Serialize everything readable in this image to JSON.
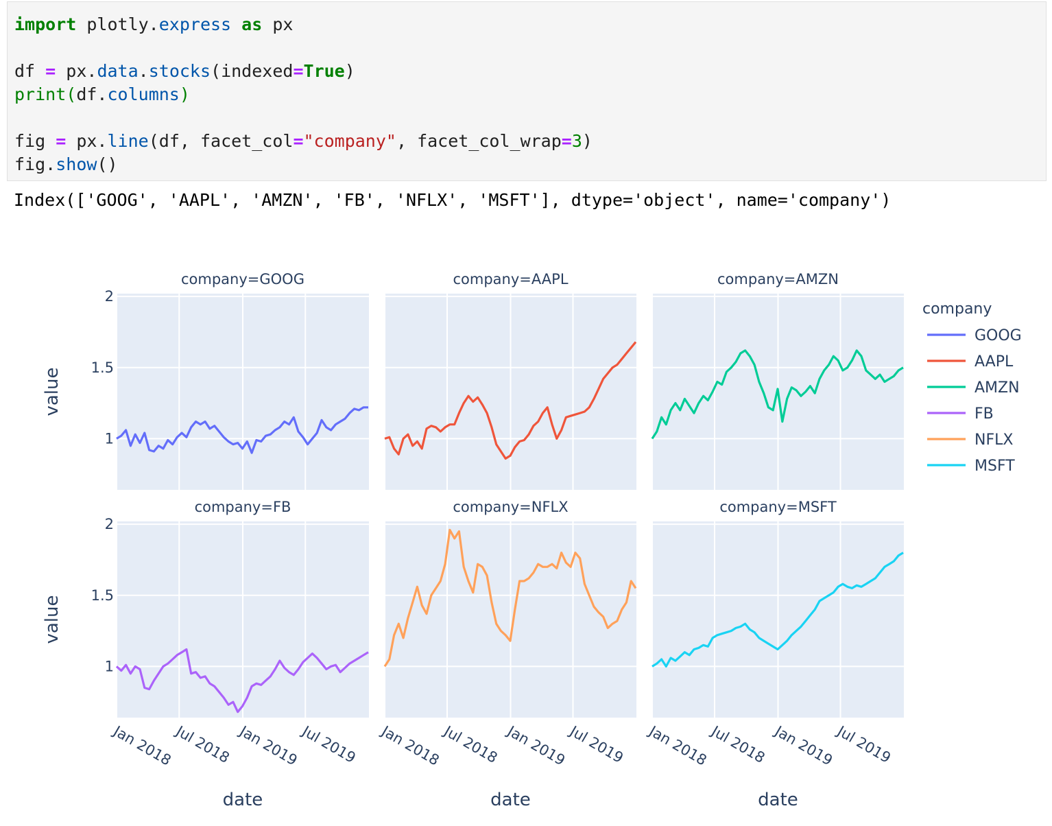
{
  "code": {
    "lines": [
      [
        {
          "t": "import",
          "c": "kw"
        },
        {
          "t": " plotly."
        },
        {
          "t": "express",
          "c": "attr"
        },
        {
          "t": " "
        },
        {
          "t": "as",
          "c": "kw"
        },
        {
          "t": " px"
        }
      ],
      [],
      [
        {
          "t": "df "
        },
        {
          "t": "=",
          "c": "op"
        },
        {
          "t": " px."
        },
        {
          "t": "data",
          "c": "attr"
        },
        {
          "t": "."
        },
        {
          "t": "stocks",
          "c": "attr"
        },
        {
          "t": "(indexed"
        },
        {
          "t": "=",
          "c": "op"
        },
        {
          "t": "True",
          "c": "kw"
        },
        {
          "t": ")"
        }
      ],
      [
        {
          "t": "print",
          "c": "fn"
        },
        {
          "t": "(",
          "c": "fn"
        },
        {
          "t": "df."
        },
        {
          "t": "columns",
          "c": "attr"
        },
        {
          "t": ")",
          "c": "fn"
        }
      ],
      [],
      [
        {
          "t": "fig "
        },
        {
          "t": "=",
          "c": "op"
        },
        {
          "t": " px."
        },
        {
          "t": "line",
          "c": "attr"
        },
        {
          "t": "(df, facet_col"
        },
        {
          "t": "=",
          "c": "op"
        },
        {
          "t": "\"company\"",
          "c": "str"
        },
        {
          "t": ", facet_col_wrap"
        },
        {
          "t": "=",
          "c": "op"
        },
        {
          "t": "3",
          "c": "num"
        },
        {
          "t": ")"
        }
      ],
      [
        {
          "t": "fig."
        },
        {
          "t": "show",
          "c": "attr"
        },
        {
          "t": "()"
        }
      ]
    ]
  },
  "output_text": "Index(['GOOG', 'AAPL', 'AMZN', 'FB', 'NFLX', 'MSFT'], dtype='object', name='company')",
  "chart_data": {
    "type": "line",
    "xlabel": "date",
    "ylabel": "value",
    "x_ticks": [
      "Jan 2018",
      "Jul 2018",
      "Jan 2019",
      "Jul 2019"
    ],
    "x_tick_dates": [
      "2018-01-01",
      "2018-07-01",
      "2019-01-01",
      "2019-07-01"
    ],
    "x_range": [
      "2018-01-01",
      "2020-01-01"
    ],
    "y_ticks": [
      1,
      1.5,
      2
    ],
    "y_tick_labels": [
      "1",
      "1.5",
      "2"
    ],
    "y_range": [
      0.64,
      2.02
    ],
    "grid": true,
    "legend_title": "company",
    "legend_position": "right",
    "facet_prefix": "company=",
    "panel_background": "#e5ecf6",
    "series": [
      {
        "name": "GOOG",
        "color": "#636efa",
        "values": [
          1.0,
          1.02,
          1.06,
          0.95,
          1.03,
          0.97,
          1.04,
          0.92,
          0.91,
          0.95,
          0.93,
          0.99,
          0.96,
          1.01,
          1.04,
          1.01,
          1.08,
          1.12,
          1.1,
          1.12,
          1.07,
          1.09,
          1.05,
          1.01,
          0.98,
          0.96,
          0.97,
          0.93,
          0.98,
          0.9,
          0.99,
          0.98,
          1.02,
          1.03,
          1.06,
          1.08,
          1.12,
          1.1,
          1.15,
          1.05,
          1.01,
          0.96,
          1.0,
          1.04,
          1.13,
          1.08,
          1.06,
          1.1,
          1.12,
          1.14,
          1.18,
          1.21,
          1.2,
          1.22,
          1.22
        ]
      },
      {
        "name": "AAPL",
        "color": "#ef553b",
        "values": [
          1.0,
          1.01,
          0.93,
          0.89,
          1.0,
          1.03,
          0.95,
          0.98,
          0.93,
          1.07,
          1.09,
          1.08,
          1.05,
          1.08,
          1.1,
          1.1,
          1.18,
          1.25,
          1.3,
          1.26,
          1.29,
          1.24,
          1.18,
          1.08,
          0.96,
          0.91,
          0.86,
          0.88,
          0.94,
          0.98,
          0.99,
          1.03,
          1.09,
          1.12,
          1.18,
          1.22,
          1.1,
          1.0,
          1.06,
          1.15,
          1.16,
          1.17,
          1.18,
          1.19,
          1.22,
          1.28,
          1.35,
          1.42,
          1.46,
          1.5,
          1.52,
          1.56,
          1.6,
          1.64,
          1.68
        ]
      },
      {
        "name": "AMZN",
        "color": "#00cc96",
        "values": [
          1.0,
          1.05,
          1.15,
          1.1,
          1.2,
          1.25,
          1.2,
          1.28,
          1.23,
          1.18,
          1.25,
          1.3,
          1.27,
          1.33,
          1.4,
          1.38,
          1.47,
          1.5,
          1.54,
          1.6,
          1.62,
          1.58,
          1.52,
          1.4,
          1.32,
          1.22,
          1.2,
          1.35,
          1.12,
          1.28,
          1.36,
          1.34,
          1.3,
          1.33,
          1.37,
          1.32,
          1.42,
          1.48,
          1.52,
          1.58,
          1.55,
          1.48,
          1.5,
          1.55,
          1.62,
          1.58,
          1.48,
          1.45,
          1.42,
          1.45,
          1.4,
          1.42,
          1.44,
          1.48,
          1.5
        ]
      },
      {
        "name": "FB",
        "color": "#ab63fa",
        "values": [
          1.0,
          0.97,
          1.01,
          0.95,
          1.0,
          0.98,
          0.85,
          0.84,
          0.9,
          0.95,
          1.0,
          1.02,
          1.05,
          1.08,
          1.1,
          1.12,
          0.95,
          0.96,
          0.92,
          0.93,
          0.88,
          0.86,
          0.82,
          0.78,
          0.73,
          0.75,
          0.68,
          0.72,
          0.78,
          0.86,
          0.88,
          0.87,
          0.9,
          0.93,
          0.98,
          1.04,
          0.99,
          0.96,
          0.94,
          0.98,
          1.03,
          1.06,
          1.09,
          1.06,
          1.02,
          0.98,
          1.0,
          1.01,
          0.96,
          0.99,
          1.02,
          1.04,
          1.06,
          1.08,
          1.1
        ]
      },
      {
        "name": "NFLX",
        "color": "#ffa15a",
        "values": [
          1.0,
          1.05,
          1.22,
          1.3,
          1.2,
          1.34,
          1.45,
          1.56,
          1.43,
          1.37,
          1.5,
          1.55,
          1.6,
          1.72,
          1.96,
          1.9,
          1.95,
          1.7,
          1.6,
          1.52,
          1.72,
          1.7,
          1.64,
          1.45,
          1.3,
          1.25,
          1.22,
          1.18,
          1.4,
          1.6,
          1.6,
          1.62,
          1.66,
          1.72,
          1.7,
          1.7,
          1.72,
          1.69,
          1.8,
          1.73,
          1.7,
          1.8,
          1.76,
          1.58,
          1.5,
          1.42,
          1.38,
          1.35,
          1.27,
          1.3,
          1.32,
          1.4,
          1.45,
          1.6,
          1.55
        ]
      },
      {
        "name": "MSFT",
        "color": "#19d3f3",
        "values": [
          1.0,
          1.02,
          1.05,
          1.0,
          1.06,
          1.04,
          1.07,
          1.1,
          1.08,
          1.12,
          1.13,
          1.15,
          1.14,
          1.2,
          1.22,
          1.23,
          1.24,
          1.25,
          1.27,
          1.28,
          1.3,
          1.26,
          1.24,
          1.2,
          1.18,
          1.16,
          1.14,
          1.12,
          1.15,
          1.18,
          1.22,
          1.25,
          1.28,
          1.32,
          1.36,
          1.4,
          1.46,
          1.48,
          1.5,
          1.52,
          1.56,
          1.58,
          1.56,
          1.55,
          1.57,
          1.56,
          1.58,
          1.6,
          1.62,
          1.66,
          1.7,
          1.72,
          1.74,
          1.78,
          1.8
        ]
      }
    ]
  }
}
